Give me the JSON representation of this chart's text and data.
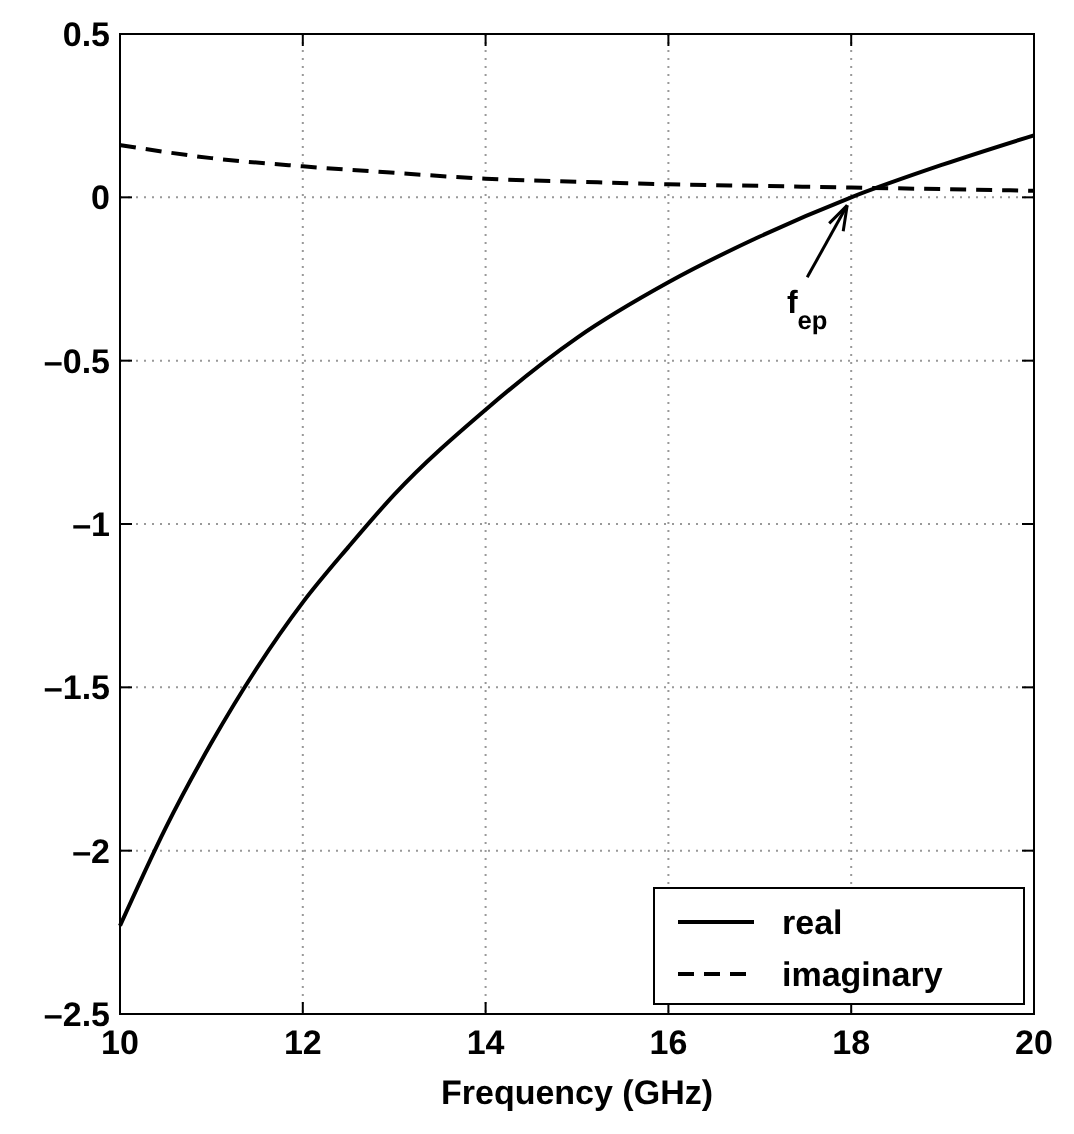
{
  "chart_data": {
    "type": "line",
    "xlabel": "Frequency (GHz)",
    "xlim": [
      10,
      20
    ],
    "ylim": [
      -2.5,
      0.5
    ],
    "xticks": [
      10,
      12,
      14,
      16,
      18,
      20
    ],
    "yticks": [
      {
        "value": -2.5,
        "label": "–2.5"
      },
      {
        "value": -2,
        "label": "–2"
      },
      {
        "value": -1.5,
        "label": "–1.5"
      },
      {
        "value": -1,
        "label": "–1"
      },
      {
        "value": -0.5,
        "label": "–0.5"
      },
      0,
      0.5
    ],
    "grid": true,
    "legend": "bottom right",
    "series": [
      {
        "name": "real",
        "color": "#000000",
        "line_style": "solid",
        "x": [
          10,
          10.5,
          11,
          11.5,
          12,
          12.5,
          13,
          14,
          15,
          16,
          17,
          18,
          19,
          20
        ],
        "values": [
          -2.23,
          -1.93,
          -1.67,
          -1.44,
          -1.24,
          -1.07,
          -0.91,
          -0.65,
          -0.43,
          -0.26,
          -0.12,
          0.0,
          0.1,
          0.19
        ]
      },
      {
        "name": "imaginary",
        "color": "#000000",
        "line_style": "dashed",
        "x": [
          10,
          11,
          12,
          13,
          14,
          15,
          16,
          17,
          18,
          19,
          20
        ],
        "values": [
          0.16,
          0.12,
          0.095,
          0.075,
          0.057,
          0.048,
          0.04,
          0.035,
          0.03,
          0.025,
          0.02
        ]
      }
    ],
    "annotations": [
      {
        "text": "f$_{ep}$",
        "x": 18,
        "y": 0
      }
    ]
  }
}
